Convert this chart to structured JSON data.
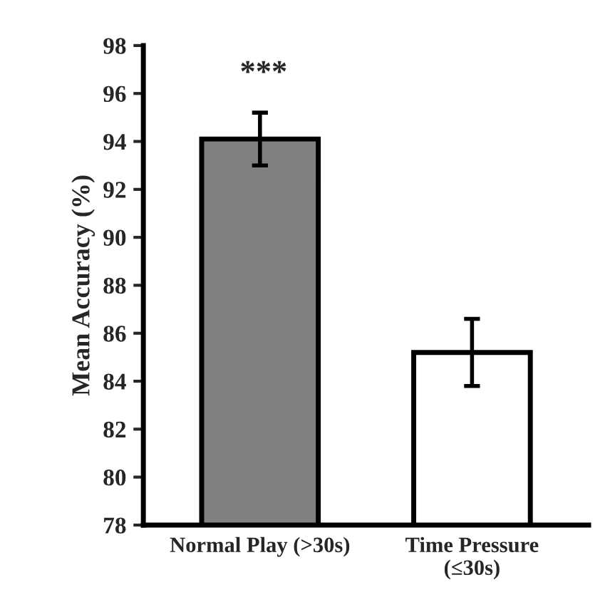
{
  "chart_data": {
    "type": "bar",
    "ylabel": "Mean Accuracy (%)",
    "categories": [
      "Normal Play (>30s)",
      "Time Pressure\n(≤30s)"
    ],
    "values": [
      94.1,
      85.2
    ],
    "colors": [
      "#808080",
      "#ffffff"
    ],
    "errors": [
      [
        93.0,
        95.2
      ],
      [
        83.8,
        86.6
      ]
    ],
    "ylim": [
      78,
      98
    ],
    "yticks": [
      78,
      80,
      82,
      84,
      86,
      88,
      90,
      92,
      94,
      96,
      98
    ],
    "annotations": [
      "***"
    ],
    "grid": false,
    "legend": false
  }
}
